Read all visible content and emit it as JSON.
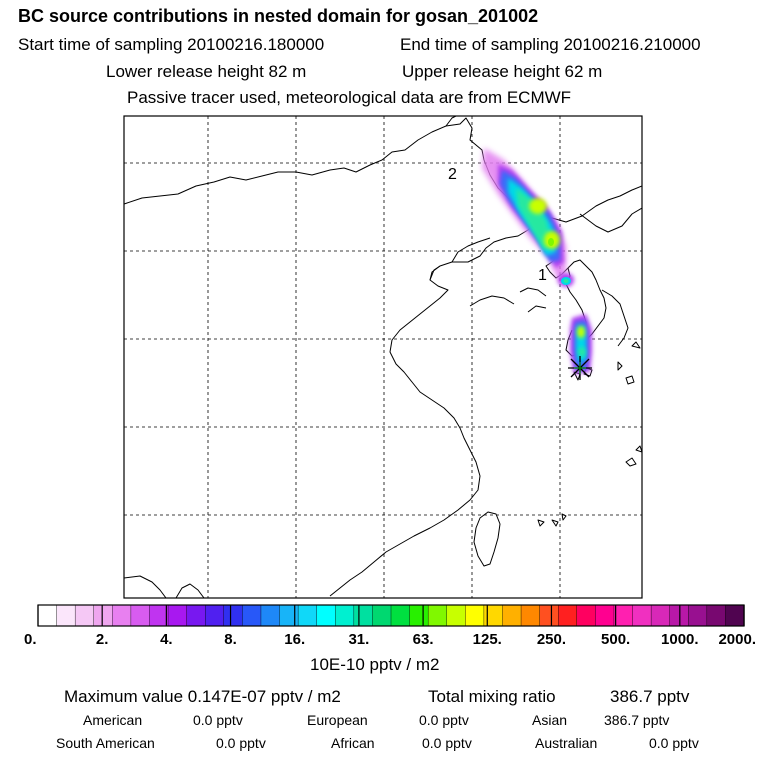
{
  "header": {
    "title": "BC  source contributions in nested domain for gosan_201002",
    "start_time": "Start time of sampling 20100216.180000",
    "end_time": "End time of sampling 20100216.210000",
    "lower_release": "Lower release height   82 m",
    "upper_release": "Upper release height   62 m",
    "tracer_note": "Passive tracer used, meteorological data are from ECMWF"
  },
  "map": {
    "point_labels": [
      "2",
      "1"
    ],
    "receptor_marker": "star"
  },
  "colorbar": {
    "colors": [
      "#ffffff",
      "#fbe6fb",
      "#f5c8f5",
      "#efa6ef",
      "#e880f0",
      "#d85cf0",
      "#c034f0",
      "#a818f0",
      "#7818f0",
      "#5020f0",
      "#3030f0",
      "#2858f8",
      "#1e88f8",
      "#18b4f8",
      "#10d8f8",
      "#00ffff",
      "#00f0d0",
      "#00e0a0",
      "#00d870",
      "#00e040",
      "#28f000",
      "#80f800",
      "#c8ff00",
      "#ffff00",
      "#ffd800",
      "#ffb000",
      "#ff8800",
      "#ff5020",
      "#ff2020",
      "#ff0060",
      "#ff0090",
      "#ff20b0",
      "#f030c0",
      "#d828b8",
      "#b818a8",
      "#981090",
      "#780870",
      "#500450"
    ],
    "tick_labels": [
      "0.",
      "2.",
      "4.",
      "8.",
      "16.",
      "31.",
      "63.",
      "125.",
      "250.",
      "500.",
      "1000.",
      "2000."
    ],
    "units": "10E-10 pptv / m2"
  },
  "summary": {
    "max_value": "Maximum value  0.147E-07 pptv / m2",
    "total_mixing": "Total mixing ratio",
    "total_value": "386.7 pptv",
    "rows": [
      [
        {
          "label": "American",
          "value": "0.0 pptv"
        },
        {
          "label": "European",
          "value": "0.0 pptv"
        },
        {
          "label": "Asian",
          "value": "386.7 pptv"
        }
      ],
      [
        {
          "label": "South American",
          "value": "0.0 pptv"
        },
        {
          "label": "African",
          "value": "0.0 pptv"
        },
        {
          "label": "Australian",
          "value": "0.0 pptv"
        }
      ]
    ]
  }
}
